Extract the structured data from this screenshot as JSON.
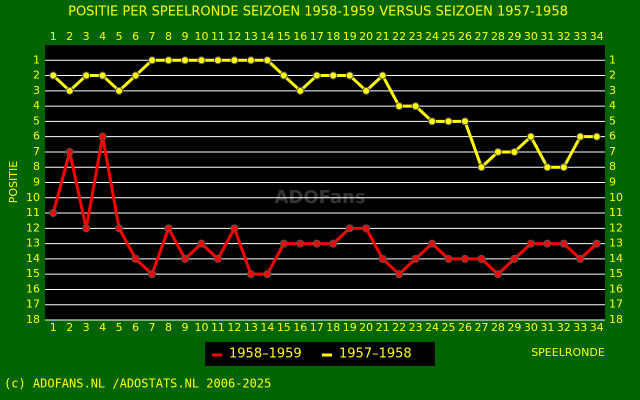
{
  "chart_data": {
    "type": "line",
    "title": "POSITIE PER SPEELRONDE SEIZOEN 1958-1959 VERSUS SEIZOEN 1957-1958",
    "y_label": "POSITIE",
    "x_label": "SPEELRONDE",
    "footer": "(c) ADOFANS.NL /ADOSTATS.NL 2006-2025",
    "watermark": "ADOFans",
    "x": [
      1,
      2,
      3,
      4,
      5,
      6,
      7,
      8,
      9,
      10,
      11,
      12,
      13,
      14,
      15,
      16,
      17,
      18,
      19,
      20,
      21,
      22,
      23,
      24,
      25,
      26,
      27,
      28,
      29,
      30,
      31,
      32,
      33,
      34
    ],
    "xlim": [
      0.5,
      34.5
    ],
    "ylim": [
      0,
      18
    ],
    "inverted": true,
    "yticks": [
      1,
      2,
      3,
      4,
      5,
      6,
      7,
      8,
      9,
      10,
      11,
      12,
      13,
      14,
      15,
      16,
      17,
      18
    ],
    "grid": true,
    "series": [
      {
        "name": "1958–1959",
        "color": "#ff0000",
        "values": [
          11,
          7,
          12,
          6,
          12,
          14,
          15,
          12,
          14,
          13,
          14,
          12,
          15,
          15,
          13,
          13,
          13,
          13,
          12,
          12,
          14,
          15,
          14,
          13,
          14,
          14,
          14,
          15,
          14,
          13,
          13,
          13,
          14,
          13
        ]
      },
      {
        "name": "1957–1958",
        "color": "#ffff00",
        "values": [
          2,
          3,
          2,
          2,
          3,
          2,
          1,
          1,
          1,
          1,
          1,
          1,
          1,
          1,
          2,
          3,
          2,
          2,
          2,
          3,
          2,
          4,
          4,
          5,
          5,
          5,
          8,
          7,
          7,
          6,
          8,
          8,
          6,
          6
        ]
      }
    ]
  }
}
